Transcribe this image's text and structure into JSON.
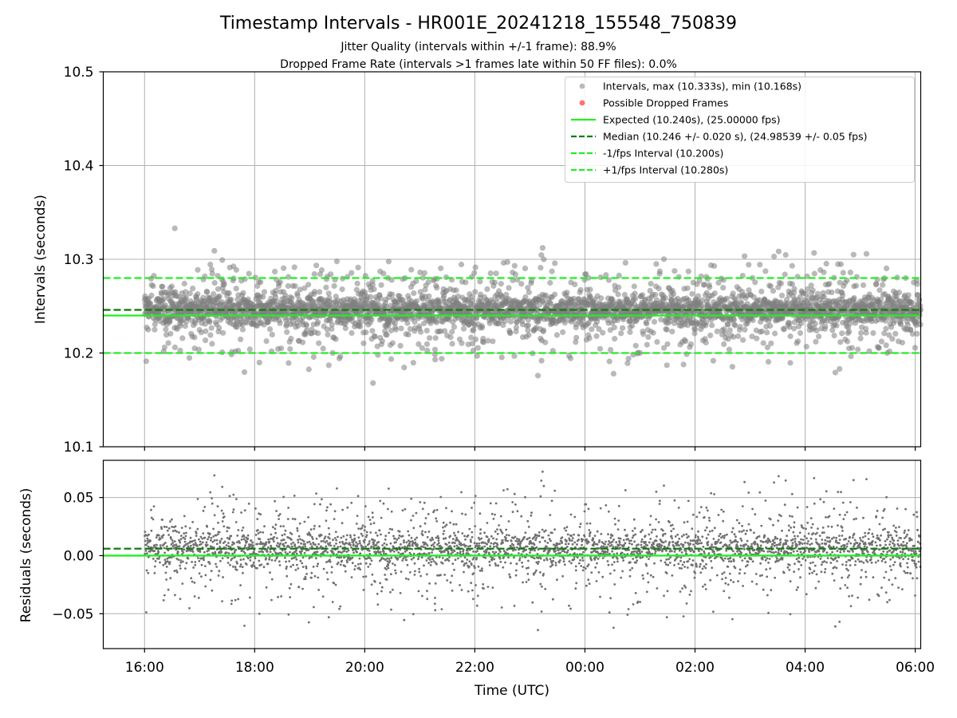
{
  "chart_data": [
    {
      "type": "scatter",
      "title": "Timestamp Intervals - HR001E_20241218_155548_750839",
      "subtitle_lines": [
        "Jitter Quality (intervals within +/-1 frame): 88.9%",
        "Dropped Frame Rate (intervals >1 frames late within 50 FF files): 0.0%"
      ],
      "ylabel": "Intervals (seconds)",
      "ylim": [
        10.1,
        10.5
      ],
      "yticks": [
        10.1,
        10.2,
        10.3,
        10.4,
        10.5
      ],
      "ytick_labels": [
        "10.1",
        "10.2",
        "10.3",
        "10.4",
        "10.5"
      ],
      "x_range_hours": [
        "15:15",
        "06:06 next day"
      ],
      "grid": true,
      "legend_position": "top-right",
      "series": [
        {
          "name": "Intervals, max (10.333s), min (10.168s)",
          "kind": "scatter",
          "color": "#808080",
          "x_start": "16:00",
          "x_end": "06:06",
          "center": 10.246,
          "spread_sd": 0.02,
          "max": 10.333,
          "min": 10.168
        },
        {
          "name": "Possible Dropped Frames",
          "kind": "scatter",
          "color": "#ff6060",
          "values": []
        },
        {
          "name": "Expected (10.240s), (25.00000 fps)",
          "kind": "hline",
          "y": 10.24,
          "color": "#22ee22",
          "style": "solid"
        },
        {
          "name": "Median (10.246 +/- 0.020 s), (24.98539 +/- 0.05 fps)",
          "kind": "hline",
          "y": 10.246,
          "color": "#157a15",
          "style": "dashed"
        },
        {
          "name": "-1/fps Interval (10.200s)",
          "kind": "hline",
          "y": 10.2,
          "color": "#22ee22",
          "style": "dashed"
        },
        {
          "name": "+1/fps Interval (10.280s)",
          "kind": "hline",
          "y": 10.28,
          "color": "#22ee22",
          "style": "dashed"
        }
      ]
    },
    {
      "type": "scatter",
      "xlabel": "Time (UTC)",
      "ylabel": "Residuals (seconds)",
      "ylim": [
        -0.08,
        0.082
      ],
      "yticks": [
        -0.05,
        0.0,
        0.05
      ],
      "ytick_labels": [
        "−0.05",
        "0.00",
        "0.05"
      ],
      "xticks": [
        "16:00",
        "18:00",
        "20:00",
        "22:00",
        "00:00",
        "02:00",
        "04:00",
        "06:00"
      ],
      "grid": true,
      "series": [
        {
          "kind": "scatter",
          "color": "#707070",
          "center": 0.006,
          "spread_sd": 0.02
        },
        {
          "kind": "hline",
          "y": 0.0,
          "color": "#22ee22",
          "style": "solid"
        },
        {
          "kind": "hline",
          "y": 0.006,
          "color": "#157a15",
          "style": "dashed"
        }
      ]
    }
  ]
}
